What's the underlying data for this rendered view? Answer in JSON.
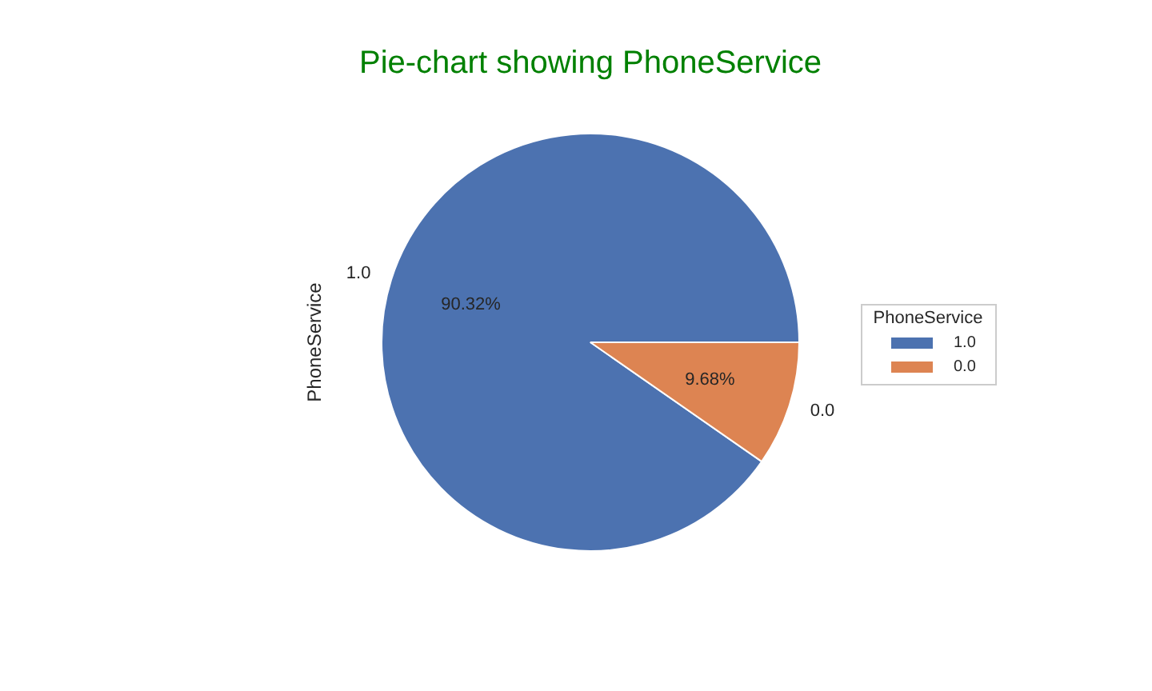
{
  "chart_data": {
    "type": "pie",
    "title": "Pie-chart showing PhoneService",
    "ylabel": "PhoneService",
    "legend_title": "PhoneService",
    "legend": "right",
    "categories": [
      "1.0",
      "0.0"
    ],
    "values": [
      90.32,
      9.68
    ],
    "colors": [
      "#4c72b0",
      "#dd8452"
    ],
    "value_labels": [
      "90.32%",
      "9.68%"
    ]
  }
}
